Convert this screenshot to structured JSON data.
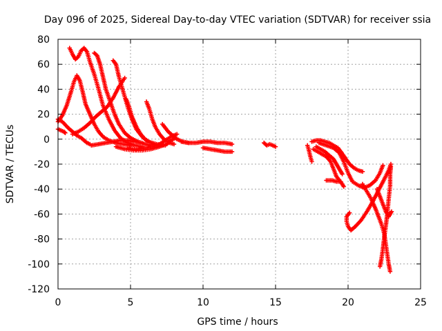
{
  "chart_data": {
    "type": "scatter",
    "title": "Day 096 of 2025, Sidereal Day-to-day VTEC variation (SDTVAR) for receiver ssia",
    "xlabel": "GPS time / hours",
    "ylabel": "SDTVAR / TECUs",
    "xlim": [
      0,
      25
    ],
    "ylim": [
      -120,
      80
    ],
    "xticks": [
      0,
      5,
      10,
      15,
      20,
      25
    ],
    "yticks": [
      -120,
      -100,
      -80,
      -60,
      -40,
      -20,
      0,
      20,
      40,
      60,
      80
    ],
    "grid": true,
    "marker": "plus",
    "color": "#ff0000",
    "series": [
      {
        "points": [
          [
            0.0,
            16
          ],
          [
            0.3,
            14
          ],
          [
            0.7,
            9
          ],
          [
            1.0,
            6
          ],
          [
            1.3,
            3
          ],
          [
            1.6,
            1
          ],
          [
            1.8,
            -1
          ],
          [
            2.0,
            -3
          ],
          [
            2.2,
            -4
          ]
        ]
      },
      {
        "points": [
          [
            0.0,
            8
          ],
          [
            0.2,
            7
          ],
          [
            0.4,
            6
          ],
          [
            0.5,
            5
          ]
        ]
      },
      {
        "points": [
          [
            0.0,
            14
          ],
          [
            0.3,
            19
          ],
          [
            0.6,
            27
          ],
          [
            0.9,
            38
          ],
          [
            1.1,
            46
          ],
          [
            1.3,
            51
          ],
          [
            1.5,
            47
          ],
          [
            1.7,
            38
          ],
          [
            1.9,
            28
          ],
          [
            2.2,
            20
          ],
          [
            2.5,
            12
          ],
          [
            2.8,
            6
          ],
          [
            3.1,
            2
          ],
          [
            3.5,
            -1
          ],
          [
            4.0,
            -3
          ],
          [
            4.5,
            -4
          ],
          [
            5.0,
            -5
          ]
        ]
      },
      {
        "points": [
          [
            0.8,
            73
          ],
          [
            1.0,
            68
          ],
          [
            1.2,
            64
          ],
          [
            1.4,
            66
          ],
          [
            1.6,
            71
          ],
          [
            1.8,
            73
          ],
          [
            2.0,
            70
          ],
          [
            2.2,
            62
          ],
          [
            2.5,
            52
          ],
          [
            2.8,
            40
          ],
          [
            3.1,
            27
          ],
          [
            3.5,
            16
          ],
          [
            3.9,
            7
          ],
          [
            4.3,
            1
          ],
          [
            4.8,
            -3
          ],
          [
            5.3,
            -5
          ],
          [
            5.8,
            -6
          ]
        ]
      },
      {
        "points": [
          [
            2.5,
            69
          ],
          [
            2.7,
            67
          ],
          [
            2.9,
            60
          ],
          [
            3.1,
            50
          ],
          [
            3.3,
            40
          ],
          [
            3.6,
            30
          ],
          [
            3.9,
            20
          ],
          [
            4.2,
            12
          ],
          [
            4.6,
            5
          ],
          [
            5.0,
            1
          ],
          [
            5.5,
            -2
          ],
          [
            6.0,
            -4
          ],
          [
            6.5,
            -5
          ]
        ]
      },
      {
        "points": [
          [
            3.8,
            63
          ],
          [
            4.0,
            60
          ],
          [
            4.2,
            50
          ],
          [
            4.5,
            38
          ],
          [
            4.8,
            26
          ],
          [
            5.1,
            16
          ],
          [
            5.4,
            8
          ],
          [
            5.8,
            2
          ],
          [
            6.2,
            -2
          ],
          [
            6.8,
            -4
          ],
          [
            7.4,
            -5
          ]
        ]
      },
      {
        "points": [
          [
            1.0,
            4
          ],
          [
            1.4,
            6
          ],
          [
            1.8,
            9
          ],
          [
            2.2,
            13
          ],
          [
            2.6,
            18
          ],
          [
            3.0,
            22
          ],
          [
            3.4,
            26
          ],
          [
            3.8,
            33
          ],
          [
            4.2,
            42
          ],
          [
            4.6,
            49
          ]
        ]
      },
      {
        "points": [
          [
            2.3,
            -5
          ],
          [
            2.8,
            -4
          ],
          [
            3.3,
            -3
          ],
          [
            3.8,
            -2
          ],
          [
            4.3,
            -1
          ],
          [
            4.8,
            -1
          ],
          [
            5.3,
            -2
          ],
          [
            5.8,
            -3
          ]
        ]
      },
      {
        "points": [
          [
            4.7,
            32
          ],
          [
            4.9,
            26
          ],
          [
            5.1,
            18
          ],
          [
            5.4,
            10
          ],
          [
            5.7,
            4
          ],
          [
            6.0,
            0
          ],
          [
            6.4,
            -3
          ],
          [
            6.8,
            -5
          ]
        ]
      },
      {
        "points": [
          [
            6.1,
            30
          ],
          [
            6.3,
            24
          ],
          [
            6.5,
            16
          ],
          [
            6.7,
            10
          ],
          [
            7.0,
            4
          ],
          [
            7.3,
            0
          ],
          [
            7.7,
            -3
          ],
          [
            8.0,
            -4
          ]
        ]
      },
      {
        "points": [
          [
            4.0,
            -6
          ],
          [
            4.6,
            -8
          ],
          [
            5.2,
            -9
          ],
          [
            5.8,
            -9
          ],
          [
            6.4,
            -8
          ],
          [
            7.0,
            -6
          ],
          [
            7.5,
            -4
          ],
          [
            7.8,
            -1
          ],
          [
            8.1,
            1
          ]
        ]
      },
      {
        "points": [
          [
            4.8,
            -7
          ],
          [
            5.4,
            -8
          ],
          [
            6.0,
            -7
          ],
          [
            6.6,
            -6
          ],
          [
            7.0,
            -4
          ],
          [
            7.4,
            -1
          ],
          [
            7.8,
            2
          ],
          [
            8.2,
            4
          ]
        ]
      },
      {
        "points": [
          [
            7.2,
            12
          ],
          [
            7.4,
            9
          ],
          [
            7.6,
            6
          ],
          [
            7.9,
            3
          ],
          [
            8.2,
            0
          ],
          [
            8.6,
            -2
          ],
          [
            9.0,
            -3
          ]
        ]
      },
      {
        "points": [
          [
            8.5,
            -2
          ],
          [
            9.0,
            -3
          ],
          [
            9.5,
            -3
          ],
          [
            10.0,
            -2
          ],
          [
            10.5,
            -2
          ],
          [
            11.0,
            -3
          ],
          [
            11.5,
            -3
          ],
          [
            12.0,
            -4
          ]
        ]
      },
      {
        "points": [
          [
            10.0,
            -7
          ],
          [
            10.5,
            -8
          ],
          [
            11.0,
            -9
          ],
          [
            11.5,
            -10
          ],
          [
            12.0,
            -10
          ]
        ]
      },
      {
        "points": [
          [
            14.2,
            -3
          ],
          [
            14.4,
            -5
          ],
          [
            14.6,
            -4
          ],
          [
            14.8,
            -5
          ],
          [
            15.0,
            -6
          ]
        ]
      },
      {
        "points": [
          [
            17.2,
            -5
          ],
          [
            17.3,
            -9
          ],
          [
            17.4,
            -14
          ],
          [
            17.5,
            -18
          ]
        ]
      },
      {
        "points": [
          [
            17.5,
            -2
          ],
          [
            17.8,
            -1
          ],
          [
            18.1,
            -1
          ],
          [
            18.4,
            -2
          ],
          [
            18.7,
            -3
          ],
          [
            19.0,
            -5
          ],
          [
            19.3,
            -7
          ],
          [
            19.5,
            -10
          ],
          [
            19.8,
            -15
          ],
          [
            20.1,
            -20
          ],
          [
            20.4,
            -23
          ],
          [
            20.7,
            -25
          ],
          [
            21.0,
            -26
          ]
        ]
      },
      {
        "points": [
          [
            17.6,
            -8
          ],
          [
            17.9,
            -10
          ],
          [
            18.2,
            -12
          ],
          [
            18.5,
            -14
          ],
          [
            18.8,
            -18
          ],
          [
            19.0,
            -24
          ],
          [
            19.2,
            -30
          ],
          [
            19.4,
            -33
          ],
          [
            19.6,
            -36
          ],
          [
            19.7,
            -38
          ]
        ]
      },
      {
        "points": [
          [
            17.8,
            -6
          ],
          [
            18.1,
            -8
          ],
          [
            18.4,
            -10
          ],
          [
            18.6,
            -12
          ],
          [
            18.8,
            -14
          ],
          [
            19.0,
            -16
          ],
          [
            19.2,
            -20
          ],
          [
            19.4,
            -24
          ],
          [
            19.6,
            -28
          ]
        ]
      },
      {
        "points": [
          [
            18.5,
            -33
          ],
          [
            18.9,
            -33
          ],
          [
            19.2,
            -34
          ],
          [
            19.5,
            -34
          ]
        ]
      },
      {
        "points": [
          [
            18.0,
            -3
          ],
          [
            18.5,
            -5
          ],
          [
            19.0,
            -7
          ],
          [
            19.4,
            -11
          ],
          [
            19.7,
            -18
          ],
          [
            20.0,
            -27
          ],
          [
            20.3,
            -34
          ],
          [
            20.7,
            -37
          ],
          [
            21.1,
            -39
          ],
          [
            21.5,
            -37
          ],
          [
            21.9,
            -33
          ],
          [
            22.2,
            -27
          ],
          [
            22.4,
            -21
          ]
        ]
      },
      {
        "points": [
          [
            20.1,
            -59
          ],
          [
            19.9,
            -62
          ],
          [
            19.9,
            -66
          ],
          [
            20.0,
            -70
          ],
          [
            20.2,
            -73
          ],
          [
            20.5,
            -70
          ],
          [
            20.9,
            -65
          ],
          [
            21.3,
            -58
          ],
          [
            21.7,
            -50
          ],
          [
            22.1,
            -41
          ],
          [
            22.5,
            -32
          ],
          [
            22.8,
            -25
          ],
          [
            22.95,
            -20
          ]
        ]
      },
      {
        "points": [
          [
            22.2,
            -102
          ],
          [
            22.3,
            -96
          ],
          [
            22.4,
            -88
          ],
          [
            22.5,
            -78
          ],
          [
            22.6,
            -70
          ],
          [
            22.7,
            -60
          ],
          [
            22.8,
            -48
          ],
          [
            22.9,
            -37
          ],
          [
            22.9,
            -28
          ],
          [
            22.95,
            -22
          ]
        ]
      },
      {
        "points": [
          [
            21.0,
            -36
          ],
          [
            21.3,
            -42
          ],
          [
            21.6,
            -48
          ],
          [
            21.9,
            -56
          ],
          [
            22.1,
            -62
          ],
          [
            22.3,
            -68
          ],
          [
            22.5,
            -76
          ],
          [
            22.6,
            -84
          ],
          [
            22.7,
            -92
          ],
          [
            22.8,
            -100
          ],
          [
            22.9,
            -106
          ]
        ]
      },
      {
        "points": [
          [
            22.0,
            -40
          ],
          [
            22.2,
            -46
          ],
          [
            22.4,
            -52
          ],
          [
            22.6,
            -58
          ],
          [
            22.8,
            -62
          ],
          [
            22.9,
            -60
          ],
          [
            23.0,
            -58
          ]
        ]
      }
    ]
  }
}
